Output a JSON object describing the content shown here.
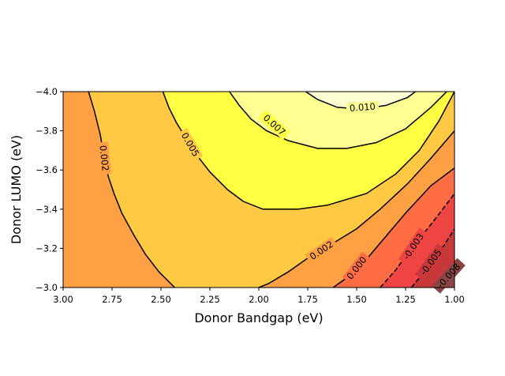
{
  "chart_data": {
    "type": "contour",
    "title": "",
    "xlabel": "Donor Bandgap (eV)",
    "ylabel": "Donor LUMO (eV)",
    "xlim": [
      3.0,
      1.0
    ],
    "ylim": [
      -3.0,
      -4.0
    ],
    "x_ticks": [
      3.0,
      2.75,
      2.5,
      2.25,
      2.0,
      1.75,
      1.5,
      1.25,
      1.0
    ],
    "x_tick_labels": [
      "3.00",
      "2.75",
      "2.50",
      "2.25",
      "2.00",
      "1.75",
      "1.50",
      "1.25",
      "1.00"
    ],
    "y_ticks": [
      -4.0,
      -3.8,
      -3.6,
      -3.4,
      -3.2,
      -3.0
    ],
    "y_tick_labels": [
      "−4.0",
      "−3.8",
      "−3.6",
      "−3.4",
      "−3.2",
      "−3.0"
    ],
    "colors": {
      "band_008": "#8b4545",
      "band_005": "#c8373a",
      "band_003": "#ef4444",
      "band_000": "#fe6d43",
      "band_002": "#fea044",
      "band_005p": "#ffc944",
      "band_007": "#ffff44",
      "band_010": "#ffff92",
      "band_top": "#ffffd4",
      "line": "#000000"
    },
    "contours": [
      {
        "level": -0.008,
        "label": "-0.008",
        "dashed": true,
        "points": [
          [
            1.05,
            -3.0
          ],
          [
            1.02,
            -3.04
          ],
          [
            1.0,
            -3.08
          ]
        ]
      },
      {
        "level": -0.005,
        "label": "-0.005",
        "dashed": true,
        "points": [
          [
            1.22,
            -3.0
          ],
          [
            1.17,
            -3.06
          ],
          [
            1.1,
            -3.15
          ],
          [
            1.05,
            -3.22
          ],
          [
            1.0,
            -3.3
          ]
        ]
      },
      {
        "level": -0.003,
        "label": "-0.003",
        "dashed": true,
        "points": [
          [
            1.38,
            -3.0
          ],
          [
            1.3,
            -3.09
          ],
          [
            1.22,
            -3.2
          ],
          [
            1.13,
            -3.31
          ],
          [
            1.06,
            -3.4
          ],
          [
            1.0,
            -3.48
          ]
        ]
      },
      {
        "level": 0.0,
        "label": "0.000",
        "dashed": false,
        "points": [
          [
            1.62,
            -3.0
          ],
          [
            1.55,
            -3.05
          ],
          [
            1.47,
            -3.12
          ],
          [
            1.36,
            -3.25
          ],
          [
            1.25,
            -3.38
          ],
          [
            1.12,
            -3.52
          ],
          [
            1.0,
            -3.61
          ]
        ]
      },
      {
        "level": 0.002,
        "label": "0.002",
        "dashed": false,
        "points": [
          [
            2.0,
            -3.0
          ],
          [
            1.95,
            -3.02
          ],
          [
            1.85,
            -3.08
          ],
          [
            1.75,
            -3.15
          ],
          [
            1.63,
            -3.22
          ],
          [
            1.5,
            -3.3
          ],
          [
            1.38,
            -3.4
          ],
          [
            1.24,
            -3.53
          ],
          [
            1.12,
            -3.66
          ],
          [
            1.0,
            -3.8
          ]
        ]
      },
      {
        "level": 0.002,
        "label": "0.002",
        "dashed": false,
        "points": [
          [
            2.87,
            -4.0
          ],
          [
            2.84,
            -3.9
          ],
          [
            2.81,
            -3.78
          ],
          [
            2.79,
            -3.66
          ],
          [
            2.77,
            -3.57
          ],
          [
            2.74,
            -3.48
          ],
          [
            2.7,
            -3.38
          ],
          [
            2.64,
            -3.27
          ],
          [
            2.58,
            -3.17
          ],
          [
            2.51,
            -3.08
          ],
          [
            2.43,
            -3.0
          ]
        ]
      },
      {
        "level": 0.005,
        "label": "0.005",
        "dashed": false,
        "points": [
          [
            2.49,
            -4.0
          ],
          [
            2.46,
            -3.92
          ],
          [
            2.42,
            -3.84
          ],
          [
            2.37,
            -3.76
          ],
          [
            2.32,
            -3.68
          ],
          [
            2.25,
            -3.59
          ],
          [
            2.16,
            -3.5
          ],
          [
            2.08,
            -3.44
          ],
          [
            1.98,
            -3.4
          ],
          [
            1.8,
            -3.4
          ],
          [
            1.65,
            -3.42
          ],
          [
            1.45,
            -3.48
          ],
          [
            1.3,
            -3.58
          ],
          [
            1.18,
            -3.7
          ],
          [
            1.08,
            -3.85
          ],
          [
            1.0,
            -4.0
          ]
        ]
      },
      {
        "level": 0.007,
        "label": "0.007",
        "dashed": false,
        "points": [
          [
            2.15,
            -4.0
          ],
          [
            2.1,
            -3.93
          ],
          [
            2.04,
            -3.86
          ],
          [
            1.96,
            -3.8
          ],
          [
            1.85,
            -3.75
          ],
          [
            1.7,
            -3.71
          ],
          [
            1.55,
            -3.71
          ],
          [
            1.4,
            -3.74
          ],
          [
            1.25,
            -3.81
          ],
          [
            1.12,
            -3.92
          ],
          [
            1.04,
            -4.0
          ]
        ]
      },
      {
        "level": 0.01,
        "label": "0.010",
        "dashed": false,
        "points": [
          [
            1.76,
            -4.0
          ],
          [
            1.7,
            -3.96
          ],
          [
            1.6,
            -3.92
          ],
          [
            1.48,
            -3.91
          ],
          [
            1.35,
            -3.93
          ],
          [
            1.24,
            -3.97
          ],
          [
            1.2,
            -4.0
          ]
        ]
      }
    ],
    "contour_labels": [
      {
        "text": "0.002",
        "x": 2.79,
        "y": -3.66,
        "angle": 84
      },
      {
        "text": "0.005",
        "x": 2.35,
        "y": -3.73,
        "angle": 60
      },
      {
        "text": "0.007",
        "x": 1.92,
        "y": -3.83,
        "angle": 42
      },
      {
        "text": "0.010",
        "x": 1.47,
        "y": -3.92,
        "angle": -4
      },
      {
        "text": "0.002",
        "x": 1.68,
        "y": -3.19,
        "angle": -34
      },
      {
        "text": "0.000",
        "x": 1.5,
        "y": -3.1,
        "angle": -52
      },
      {
        "text": "-0.003",
        "x": 1.21,
        "y": -3.21,
        "angle": -56
      },
      {
        "text": "-0.005",
        "x": 1.12,
        "y": -3.13,
        "angle": -54
      },
      {
        "text": "-0.008",
        "x": 1.03,
        "y": -3.06,
        "angle": -48
      }
    ]
  }
}
